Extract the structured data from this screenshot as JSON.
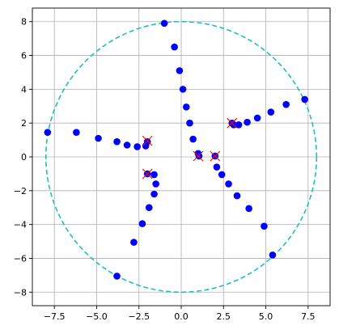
{
  "chart_data": {
    "type": "scatter",
    "title": "",
    "xlabel": "",
    "ylabel": "",
    "xlim": [
      -8.8,
      8.8
    ],
    "ylim": [
      -8.8,
      8.8
    ],
    "grid": true,
    "aspect": "equal",
    "x_ticks": [
      -7.5,
      -5.0,
      -2.5,
      0.0,
      2.5,
      5.0,
      7.5
    ],
    "x_tick_labels": [
      "−7.5",
      "−5.0",
      "−2.5",
      "0.0",
      "2.5",
      "5.0",
      "7.5"
    ],
    "y_ticks": [
      -8,
      -6,
      -4,
      -2,
      0,
      2,
      4,
      6,
      8
    ],
    "y_tick_labels": [
      "−8",
      "−6",
      "−4",
      "−2",
      "0",
      "2",
      "4",
      "6",
      "8"
    ],
    "circle": {
      "center": [
        0,
        0
      ],
      "radius": 8,
      "color": "#1fbfbf",
      "style": "dashed"
    },
    "series": [
      {
        "marker": "circle",
        "color": "#0000ff",
        "points": [
          [
            -1.0,
            7.9
          ],
          [
            -0.4,
            6.5
          ],
          [
            -0.1,
            5.1
          ],
          [
            0.1,
            4.0
          ],
          [
            0.3,
            2.95
          ],
          [
            0.5,
            2.0
          ],
          [
            0.7,
            1.05
          ],
          [
            1.0,
            0.2
          ],
          [
            1.05,
            0.05
          ],
          [
            2.0,
            0.05
          ],
          [
            2.1,
            -0.6
          ],
          [
            2.4,
            -1.05
          ],
          [
            2.8,
            -1.6
          ],
          [
            3.3,
            -2.3
          ],
          [
            4.0,
            -3.05
          ],
          [
            4.9,
            -4.1
          ],
          [
            5.4,
            -5.8
          ],
          [
            3.0,
            2.0
          ],
          [
            3.1,
            1.9
          ],
          [
            3.4,
            1.9
          ],
          [
            3.9,
            2.05
          ],
          [
            4.5,
            2.3
          ],
          [
            5.3,
            2.65
          ],
          [
            6.2,
            3.1
          ],
          [
            7.3,
            3.4
          ],
          [
            -2.0,
            0.9
          ],
          [
            -2.1,
            0.65
          ],
          [
            -2.6,
            0.6
          ],
          [
            -3.2,
            0.7
          ],
          [
            -3.8,
            0.9
          ],
          [
            -4.9,
            1.1
          ],
          [
            -6.2,
            1.45
          ],
          [
            -7.9,
            1.45
          ],
          [
            -2.0,
            -1.0
          ],
          [
            -1.6,
            -1.05
          ],
          [
            -1.5,
            -1.6
          ],
          [
            -1.6,
            -2.2
          ],
          [
            -1.9,
            -3.0
          ],
          [
            -2.3,
            -3.95
          ],
          [
            -2.8,
            -5.05
          ],
          [
            -3.8,
            -7.05
          ]
        ]
      },
      {
        "marker": "x",
        "color": "#ff0000",
        "points": [
          [
            -2.0,
            0.95
          ],
          [
            -2.0,
            -1.0
          ],
          [
            1.0,
            0.05
          ],
          [
            2.0,
            0.05
          ],
          [
            3.0,
            2.0
          ]
        ]
      }
    ]
  }
}
